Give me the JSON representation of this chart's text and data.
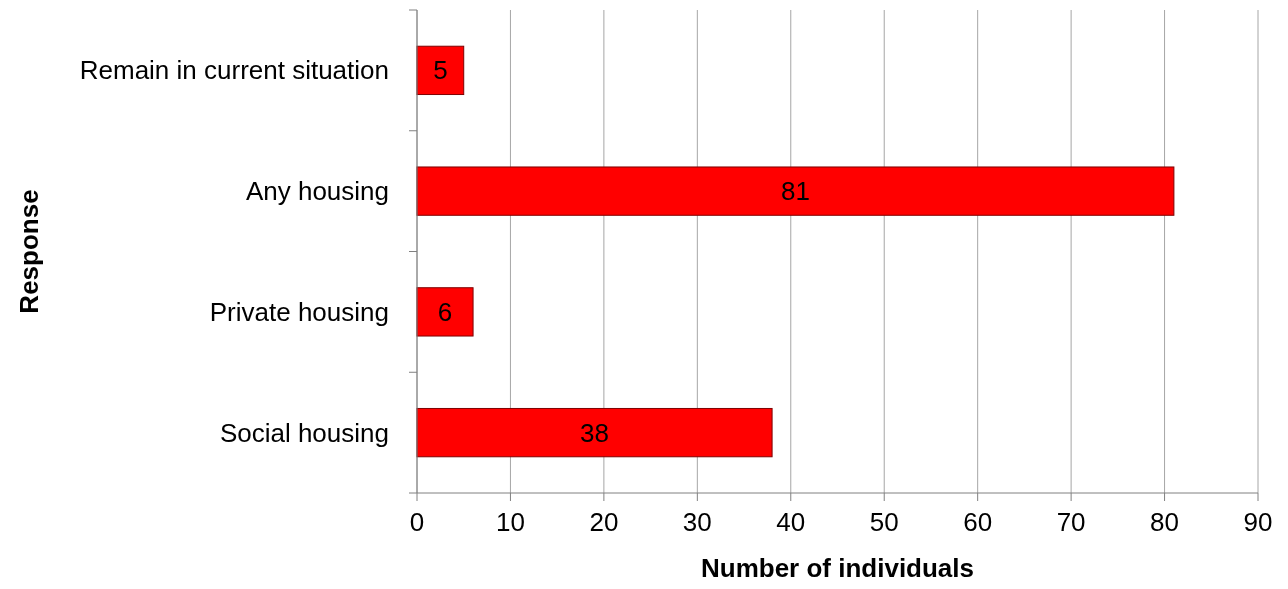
{
  "chart_data": {
    "type": "bar",
    "orientation": "horizontal",
    "categories": [
      "Remain in current situation",
      "Any housing",
      "Private housing",
      "Social housing"
    ],
    "values": [
      5,
      81,
      6,
      38
    ],
    "color": "#ff0000",
    "xlim": [
      0,
      90
    ],
    "xticks": [
      0,
      10,
      20,
      30,
      40,
      50,
      60,
      70,
      80,
      90
    ],
    "grid": "x",
    "data_labels": true,
    "xlabel": "Number of individuals",
    "ylabel": "Response"
  }
}
